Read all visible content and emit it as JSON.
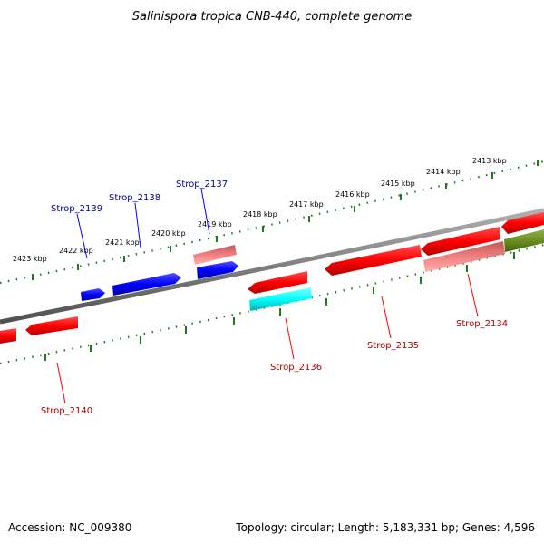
{
  "title": "Salinispora tropica CNB-440, complete genome",
  "footer": {
    "accession": "Accession: NC_009380",
    "summary": "Topology: circular; Length: 5,183,331 bp; Genes: 4,596"
  },
  "colors": {
    "backbone": "#808080",
    "tick": "#1f7a1f",
    "forward_gene": "#0000ff",
    "forward_label": "#00008b",
    "reverse_gene": "#ff0000",
    "reverse_label": "#b00000",
    "pseudo_gene": "#f08080",
    "cyan_gene": "#00ffff",
    "olive_gene": "#6b8e23"
  },
  "ticks": {
    "inner_labels": [
      "2423 kbp",
      "2422 kbp",
      "2421 kbp",
      "2420 kbp",
      "2419 kbp",
      "2418 kbp",
      "2417 kbp",
      "2416 kbp",
      "2415 kbp",
      "2414 kbp",
      "2413 kbp"
    ]
  },
  "genes": {
    "forward_labels": [
      "Strop_2139",
      "Strop_2138",
      "Strop_2137"
    ],
    "reverse_labels": [
      "Strop_2140",
      "Strop_2136",
      "Strop_2135",
      "Strop_2134"
    ]
  }
}
